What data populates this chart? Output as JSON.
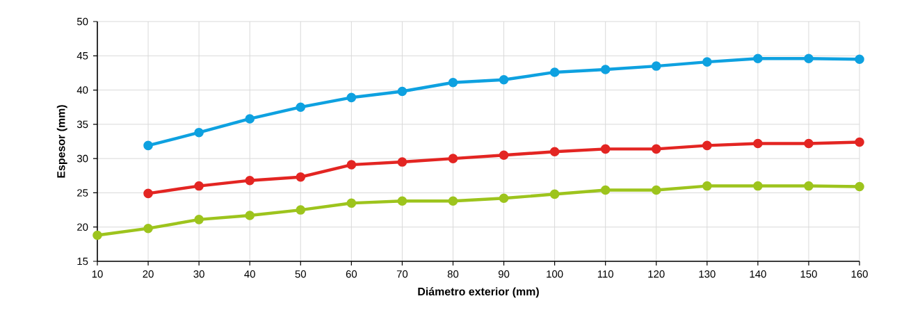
{
  "chart_data": {
    "type": "line",
    "xlabel": "Diámetro exterior (mm)",
    "ylabel": "Espesor (mm)",
    "xlim": [
      10,
      160
    ],
    "xticks": [
      10,
      20,
      30,
      40,
      50,
      60,
      70,
      80,
      90,
      100,
      110,
      120,
      130,
      140,
      150,
      160
    ],
    "ylim": [
      15,
      50
    ],
    "yticks": [
      15,
      20,
      25,
      30,
      35,
      40,
      45,
      50
    ],
    "grid": true,
    "marker": "circle",
    "line_style": "solid",
    "x": [
      10,
      20,
      30,
      40,
      50,
      60,
      70,
      80,
      90,
      100,
      110,
      120,
      130,
      140,
      150,
      160
    ],
    "series": [
      {
        "color": "#0ea1e0",
        "values": [
          null,
          31.9,
          33.8,
          35.8,
          37.5,
          38.9,
          39.8,
          41.1,
          41.5,
          42.6,
          43.0,
          43.5,
          44.1,
          44.6,
          44.6,
          44.5
        ]
      },
      {
        "color": "#e32522",
        "values": [
          null,
          24.9,
          26.0,
          26.8,
          27.3,
          29.1,
          29.5,
          30.0,
          30.5,
          31.0,
          31.4,
          31.4,
          31.9,
          32.2,
          32.2,
          32.4
        ]
      },
      {
        "color": "#9dc41d",
        "values": [
          18.8,
          19.8,
          21.1,
          21.7,
          22.5,
          23.5,
          23.8,
          23.8,
          24.2,
          24.8,
          25.4,
          25.4,
          26.0,
          26.0,
          26.0,
          25.9
        ]
      }
    ]
  }
}
